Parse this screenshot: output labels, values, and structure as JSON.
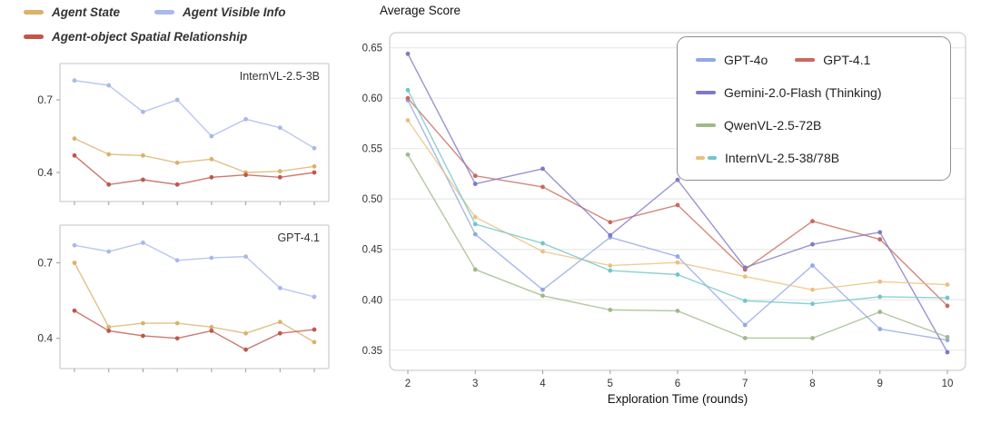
{
  "left_panel": {
    "legend": {
      "items": [
        {
          "label": "Agent State",
          "colors": [
            "#d8b36a"
          ]
        },
        {
          "label": "Agent Visible Info",
          "colors": [
            "#a9b8ed"
          ]
        },
        {
          "label": "Agent-object Spatial Relationship",
          "colors": [
            "#bf574c"
          ]
        }
      ]
    }
  },
  "main_panel": {
    "title": "Average Score",
    "legend": {
      "items": [
        {
          "label": "GPT-4o",
          "colors": [
            "#92a8e2"
          ]
        },
        {
          "label": "GPT-4.1",
          "colors": [
            "#ca695e"
          ]
        },
        {
          "label": "Gemini-2.0-Flash (Thinking)",
          "colors": [
            "#8079c5"
          ]
        },
        {
          "label": "QwenVL-2.5-72B",
          "colors": [
            "#a0b989"
          ]
        },
        {
          "label": "InternVL-2.5-38/78B",
          "colors": [
            "#ebc07c",
            "#72c6c9"
          ]
        }
      ]
    }
  },
  "chart_data": [
    {
      "type": "line",
      "inset_title": "InternVL-2.5-3B",
      "x": [
        1,
        2,
        3,
        4,
        5,
        6,
        7,
        8
      ],
      "ylim": [
        0.28,
        0.85
      ],
      "yticks": [
        0.4,
        0.7
      ],
      "grid": false,
      "series": [
        {
          "name": "Agent Visible Info",
          "color": "#a9b8ed",
          "values": [
            0.78,
            0.76,
            0.65,
            0.7,
            0.55,
            0.62,
            0.585,
            0.5
          ]
        },
        {
          "name": "Agent State",
          "color": "#d8b36a",
          "values": [
            0.54,
            0.475,
            0.47,
            0.44,
            0.455,
            0.4,
            0.405,
            0.425
          ]
        },
        {
          "name": "Agent-object Spatial Relationship",
          "color": "#bf574c",
          "values": [
            0.47,
            0.35,
            0.37,
            0.35,
            0.38,
            0.39,
            0.38,
            0.4
          ]
        }
      ]
    },
    {
      "type": "line",
      "inset_title": "GPT-4.1",
      "x": [
        1,
        2,
        3,
        4,
        5,
        6,
        7,
        8
      ],
      "ylim": [
        0.28,
        0.85
      ],
      "yticks": [
        0.4,
        0.7
      ],
      "grid": false,
      "series": [
        {
          "name": "Agent Visible Info",
          "color": "#a9b8ed",
          "values": [
            0.77,
            0.745,
            0.78,
            0.71,
            0.72,
            0.725,
            0.6,
            0.565
          ]
        },
        {
          "name": "Agent State",
          "color": "#d8b36a",
          "values": [
            0.7,
            0.445,
            0.46,
            0.46,
            0.445,
            0.42,
            0.465,
            0.385
          ]
        },
        {
          "name": "Agent-object Spatial Relationship",
          "color": "#bf574c",
          "values": [
            0.51,
            0.43,
            0.41,
            0.4,
            0.43,
            0.355,
            0.42,
            0.435
          ]
        }
      ]
    },
    {
      "type": "line",
      "title": "Average Score",
      "xlabel": "Exploration Time (rounds)",
      "ylabel": "Average Score",
      "x": [
        2,
        3,
        4,
        5,
        6,
        7,
        8,
        9,
        10
      ],
      "ylim": [
        0.33,
        0.665
      ],
      "yticks": [
        0.35,
        0.4,
        0.45,
        0.5,
        0.55,
        0.6,
        0.65
      ],
      "grid": true,
      "legend_position": "top-right",
      "series": [
        {
          "name": "GPT-4o",
          "color": "#92a8e2",
          "values": [
            0.598,
            0.465,
            0.41,
            0.462,
            0.443,
            0.375,
            0.434,
            0.371,
            0.36
          ]
        },
        {
          "name": "GPT-4.1",
          "color": "#ca695e",
          "values": [
            0.6,
            0.523,
            0.512,
            0.477,
            0.494,
            0.43,
            0.478,
            0.46,
            0.394
          ]
        },
        {
          "name": "Gemini-2.0-Flash (Thinking)",
          "color": "#8079c5",
          "values": [
            0.644,
            0.515,
            0.53,
            0.464,
            0.519,
            0.432,
            0.455,
            0.467,
            0.348
          ]
        },
        {
          "name": "QwenVL-2.5-72B",
          "color": "#a0b989",
          "values": [
            0.544,
            0.43,
            0.404,
            0.39,
            0.389,
            0.362,
            0.362,
            0.388,
            0.363
          ]
        },
        {
          "name": "InternVL-2.5-38B",
          "color": "#ebc07c",
          "values": [
            0.578,
            0.482,
            0.448,
            0.434,
            0.437,
            0.423,
            0.41,
            0.418,
            0.415
          ]
        },
        {
          "name": "InternVL-2.5-78B",
          "color": "#72c6c9",
          "values": [
            0.608,
            0.475,
            0.456,
            0.429,
            0.425,
            0.399,
            0.396,
            0.403,
            0.402
          ]
        }
      ]
    }
  ]
}
